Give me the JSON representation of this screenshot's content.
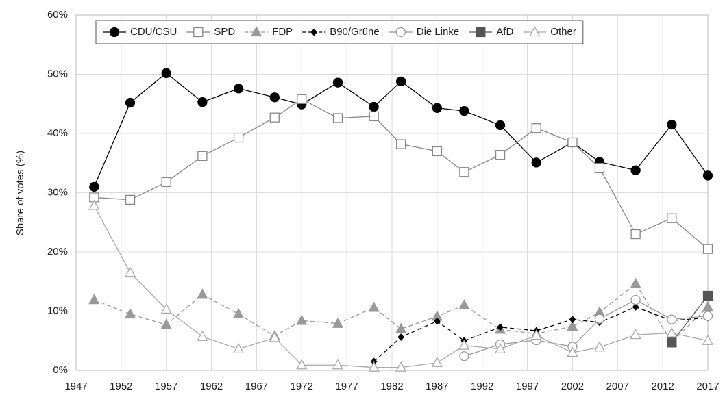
{
  "chart_data": {
    "type": "line",
    "y_label": "Share of votes (%)",
    "x": [
      1949,
      1953,
      1957,
      1961,
      1965,
      1969,
      1972,
      1976,
      1980,
      1983,
      1987,
      1990,
      1994,
      1998,
      2002,
      2005,
      2009,
      2013,
      2017
    ],
    "xlim": [
      1947,
      2017
    ],
    "xticks": [
      1947,
      1952,
      1957,
      1962,
      1967,
      1972,
      1977,
      1982,
      1987,
      1992,
      1997,
      2002,
      2007,
      2012,
      2017
    ],
    "ylim": [
      0,
      60
    ],
    "yticks": [
      {
        "value": 0,
        "label": "0%"
      },
      {
        "value": 10,
        "label": "10%"
      },
      {
        "value": 20,
        "label": "20%"
      },
      {
        "value": 30,
        "label": "30%"
      },
      {
        "value": 40,
        "label": "40%"
      },
      {
        "value": 50,
        "label": "50%"
      },
      {
        "value": 60,
        "label": "60%"
      }
    ],
    "grid": true,
    "legend": "top",
    "series": [
      {
        "name": "CDU/CSU",
        "color": "#000000",
        "marker": "circle-filled",
        "line_style": "solid",
        "values": [
          31.0,
          45.2,
          50.2,
          45.3,
          47.6,
          46.1,
          44.9,
          48.6,
          44.5,
          48.8,
          44.3,
          43.8,
          41.4,
          35.1,
          38.5,
          35.2,
          33.8,
          41.5,
          32.9
        ]
      },
      {
        "name": "SPD",
        "color": "#888888",
        "marker": "square-open",
        "line_style": "solid",
        "values": [
          29.2,
          28.8,
          31.8,
          36.2,
          39.3,
          42.7,
          45.8,
          42.6,
          42.9,
          38.2,
          37.0,
          33.5,
          36.4,
          40.9,
          38.5,
          34.2,
          23.0,
          25.7,
          20.5
        ]
      },
      {
        "name": "FDP",
        "color": "#999999",
        "marker": "triangle-filled",
        "line_style": "dashed",
        "values": [
          11.9,
          9.5,
          7.7,
          12.8,
          9.5,
          5.8,
          8.4,
          7.9,
          10.6,
          7.0,
          9.1,
          11.0,
          6.9,
          6.2,
          7.4,
          9.8,
          14.6,
          4.8,
          10.7
        ]
      },
      {
        "name": "B90/Grüne",
        "color": "#000000",
        "marker": "diamond-filled",
        "line_style": "dashed",
        "values": [
          null,
          null,
          null,
          null,
          null,
          null,
          null,
          null,
          1.5,
          5.6,
          8.3,
          5.0,
          7.3,
          6.7,
          8.6,
          8.1,
          10.7,
          8.4,
          8.9
        ]
      },
      {
        "name": "Die Linke",
        "color": "#999999",
        "marker": "circle-open",
        "line_style": "solid",
        "values": [
          null,
          null,
          null,
          null,
          null,
          null,
          null,
          null,
          null,
          null,
          null,
          2.4,
          4.4,
          5.1,
          4.0,
          8.7,
          11.9,
          8.6,
          9.2
        ]
      },
      {
        "name": "AfD",
        "color": "#555555",
        "marker": "square-filled",
        "line_style": "solid",
        "values": [
          null,
          null,
          null,
          null,
          null,
          null,
          null,
          null,
          null,
          null,
          null,
          null,
          null,
          null,
          null,
          null,
          null,
          4.7,
          12.6
        ]
      },
      {
        "name": "Other",
        "color": "#aaaaaa",
        "marker": "triangle-open",
        "line_style": "solid",
        "values": [
          27.8,
          16.5,
          10.3,
          5.7,
          3.6,
          5.5,
          0.9,
          0.9,
          0.5,
          0.5,
          1.3,
          4.2,
          3.6,
          5.9,
          3.0,
          3.9,
          6.0,
          6.3,
          5.0
        ]
      }
    ]
  }
}
